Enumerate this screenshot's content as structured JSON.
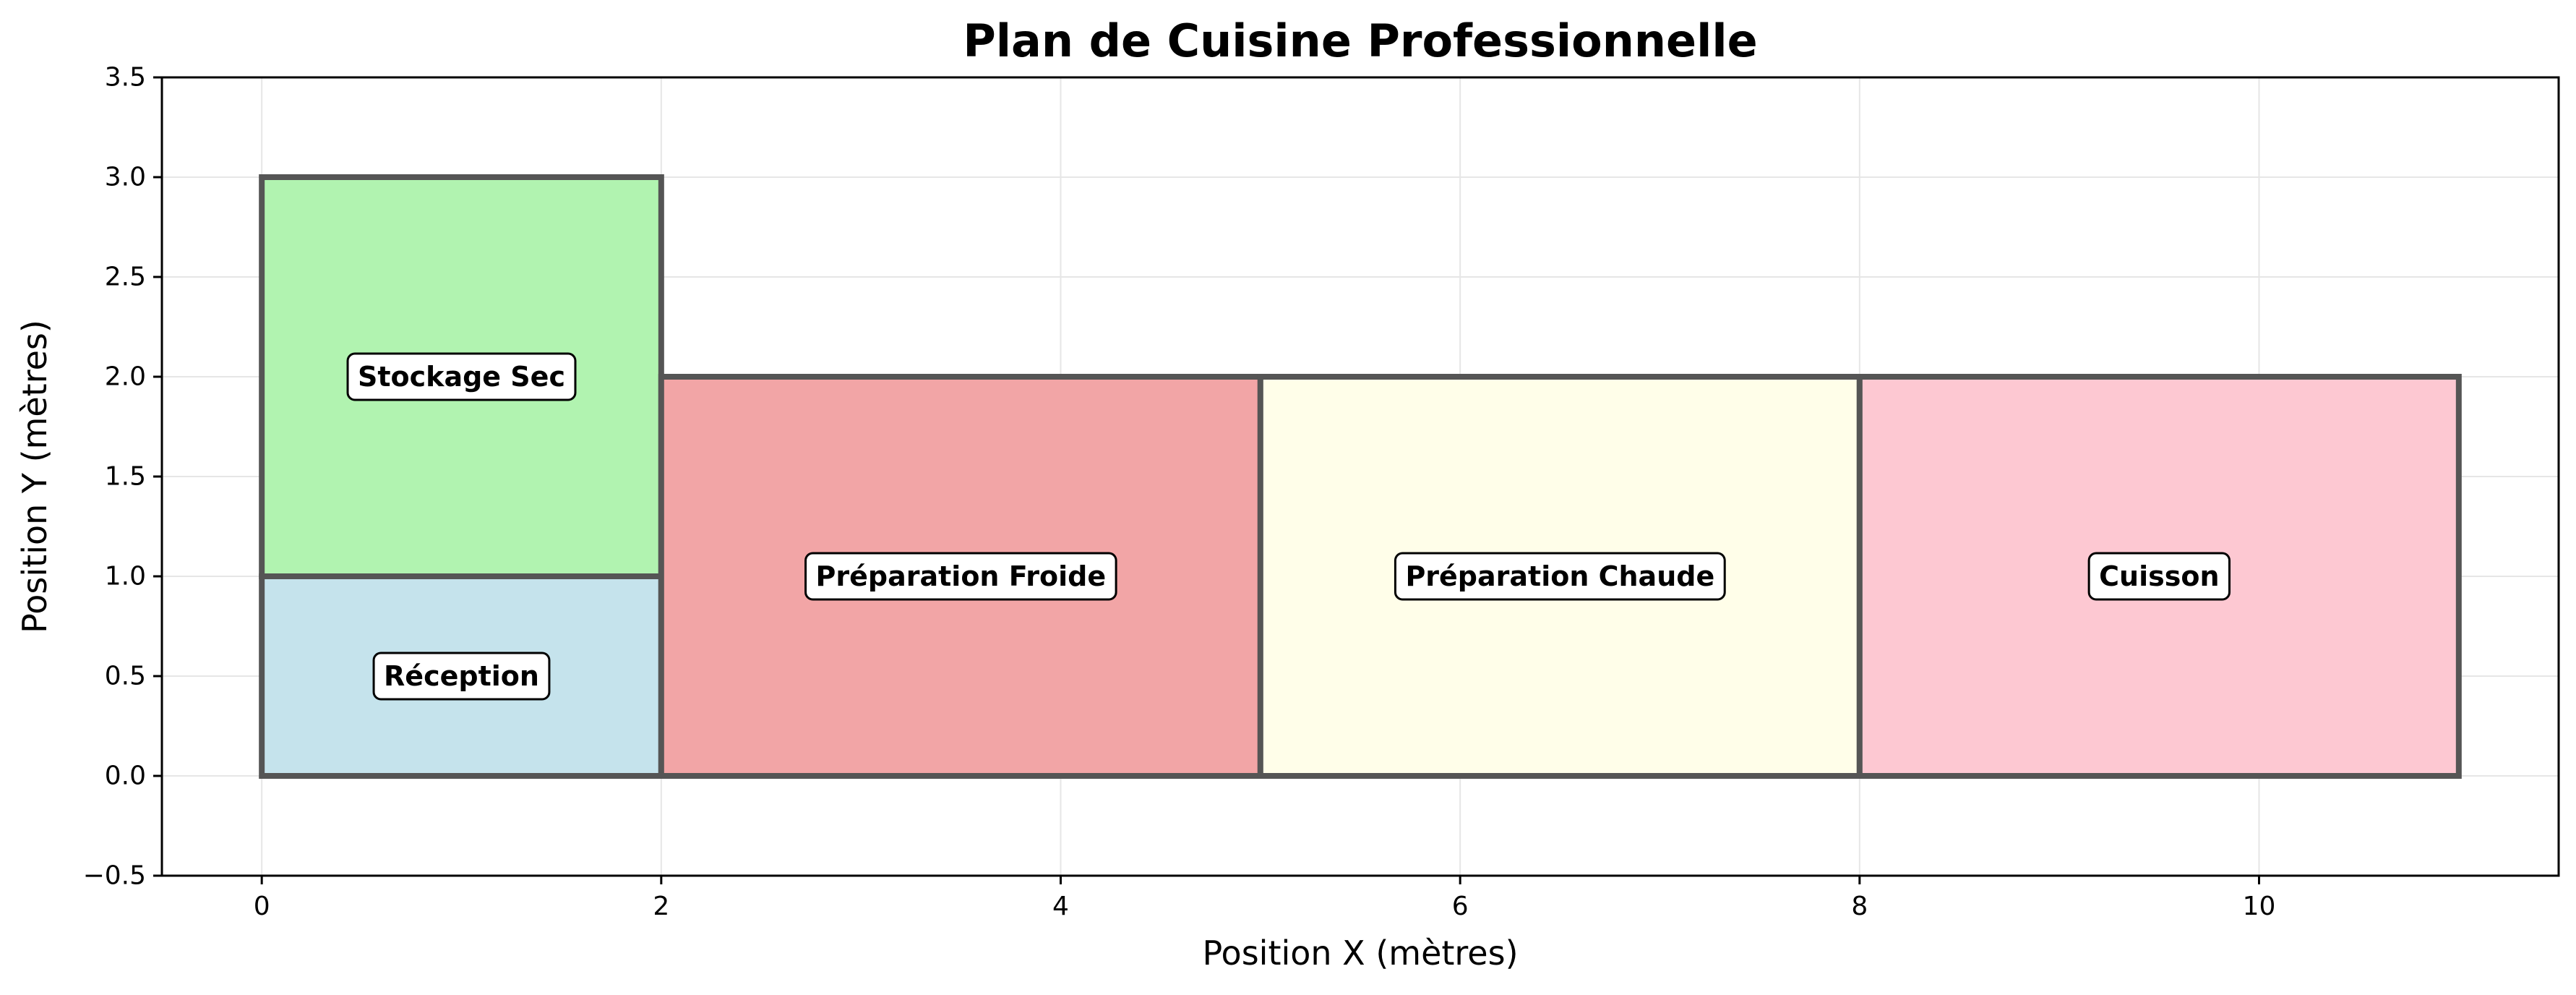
{
  "chart_data": {
    "type": "rectangles",
    "title": "Plan de Cuisine Professionnelle",
    "xlabel": "Position X (mètres)",
    "ylabel": "Position Y (mètres)",
    "xlim": [
      -0.5,
      11.5
    ],
    "ylim": [
      -0.5,
      3.5
    ],
    "xticks": [
      0,
      2,
      4,
      6,
      8,
      10
    ],
    "yticks": [
      -0.5,
      0.0,
      0.5,
      1.0,
      1.5,
      2.0,
      2.5,
      3.0,
      3.5
    ],
    "ytick_labels": [
      "−0.5",
      "0.0",
      "0.5",
      "1.0",
      "1.5",
      "2.0",
      "2.5",
      "3.0",
      "3.5"
    ],
    "grid": true,
    "zones": [
      {
        "label": "Réception",
        "x": 0,
        "y": 0,
        "width": 2,
        "height": 1,
        "color": "#c5e3ec"
      },
      {
        "label": "Stockage Sec",
        "x": 0,
        "y": 1,
        "width": 2,
        "height": 2,
        "color": "#b1f3b0"
      },
      {
        "label": "Préparation Froide",
        "x": 2,
        "y": 0,
        "width": 3,
        "height": 2,
        "color": "#f2a5a6"
      },
      {
        "label": "Préparation Chaude",
        "x": 5,
        "y": 0,
        "width": 3,
        "height": 2,
        "color": "#fffee9"
      },
      {
        "label": "Cuisson",
        "x": 8,
        "y": 0,
        "width": 3,
        "height": 2,
        "color": "#fdc8d2"
      }
    ]
  }
}
